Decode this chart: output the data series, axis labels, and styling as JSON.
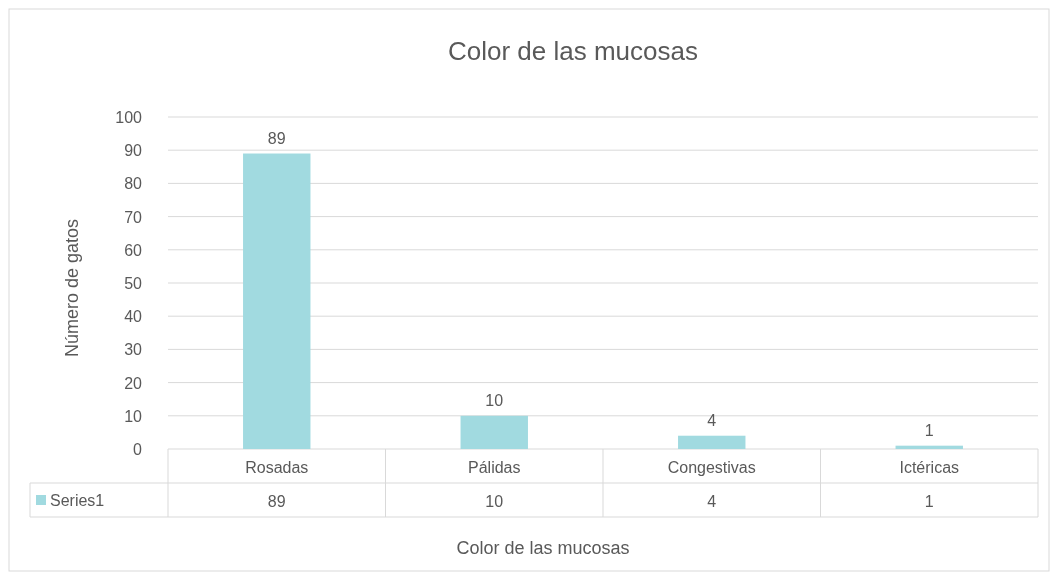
{
  "chart_data": {
    "type": "bar",
    "title": "Color de las mucosas",
    "xlabel": "Color de las mucosas",
    "ylabel": "Número de gatos",
    "categories": [
      "Rosadas",
      "Pálidas",
      "Congestivas",
      "Ictéricas"
    ],
    "series": [
      {
        "name": "Series1",
        "color": "#a1dae0",
        "values": [
          89,
          10,
          4,
          1
        ],
        "value_labels": [
          "89",
          "10",
          "4",
          "1"
        ]
      }
    ],
    "ylim": [
      0,
      100
    ],
    "yticks": [
      0,
      10,
      20,
      30,
      40,
      50,
      60,
      70,
      80,
      90,
      100
    ],
    "annotations": [
      "89",
      "10",
      "4",
      "1"
    ],
    "grid": "y",
    "data_labels": true,
    "legend": "bottom"
  }
}
